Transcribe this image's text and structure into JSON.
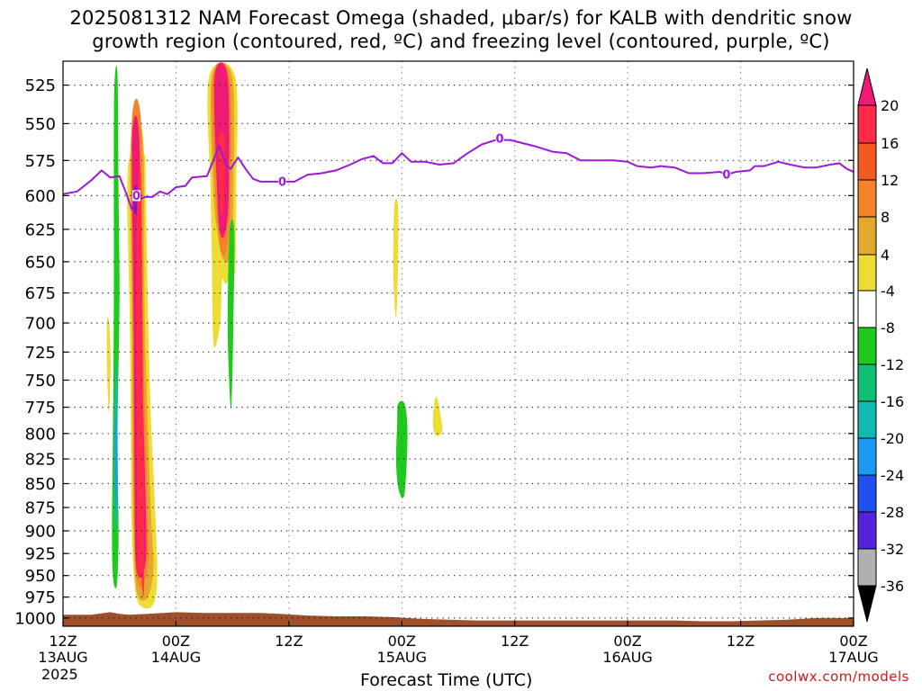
{
  "title": {
    "line1": "2025081312 NAM Forecast Omega (shaded, μbar/s) for KALB with dendritic snow",
    "line2": "growth region (contoured, red, ºC) and freezing level (contoured, purple, ºC)"
  },
  "credit": "coolwx.com/models",
  "chart_data": {
    "type": "heatmap",
    "xlabel": "Forecast Time (UTC)",
    "ylabel": "",
    "year_label": "2025",
    "x_range_hours": [
      0,
      84
    ],
    "y_range_mb": [
      1010,
      510
    ],
    "y_ticks": [
      525,
      550,
      575,
      600,
      625,
      650,
      675,
      700,
      725,
      750,
      775,
      800,
      825,
      850,
      875,
      900,
      925,
      950,
      975,
      1000
    ],
    "x_ticks": [
      {
        "h": 0,
        "line1": "12Z",
        "line2": "13AUG"
      },
      {
        "h": 12,
        "line1": "00Z",
        "line2": "14AUG"
      },
      {
        "h": 24,
        "line1": "12Z",
        "line2": ""
      },
      {
        "h": 36,
        "line1": "00Z",
        "line2": "15AUG"
      },
      {
        "h": 48,
        "line1": "12Z",
        "line2": ""
      },
      {
        "h": 60,
        "line1": "00Z",
        "line2": "16AUG"
      },
      {
        "h": 72,
        "line1": "12Z",
        "line2": ""
      },
      {
        "h": 84,
        "line1": "00Z",
        "line2": "17AUG"
      }
    ],
    "grid": true,
    "colorbar": {
      "labels": [
        "20",
        "16",
        "12",
        "8",
        "4",
        "-4",
        "-8",
        "-12",
        "-16",
        "-20",
        "-24",
        "-28",
        "-32",
        "-36"
      ],
      "colors": [
        "#ff2a4a",
        "#f25a22",
        "#f5832a",
        "#e3a92e",
        "#eddc34",
        "#ffffff",
        "#1ecb1c",
        "#10c070",
        "#12b9b0",
        "#1a9af0",
        "#2050f0",
        "#5422d8",
        "#8a10c0",
        "#b0b0b0"
      ],
      "top_color": "#ee1a73",
      "bottom_color": "#000000"
    },
    "freezing_level": {
      "color": "#9a1ad6",
      "label": "0",
      "label_points": [
        {
          "h": 7.8,
          "p": 600
        },
        {
          "h": 23.3,
          "p": 590
        },
        {
          "h": 46.4,
          "p": 560
        },
        {
          "h": 70.5,
          "p": 585
        }
      ],
      "points": [
        [
          0,
          599
        ],
        [
          1.5,
          597
        ],
        [
          3,
          589
        ],
        [
          4.1,
          582
        ],
        [
          5,
          587
        ],
        [
          6,
          586
        ],
        [
          6.8,
          600
        ],
        [
          7.3,
          610
        ],
        [
          7.8,
          604
        ],
        [
          8.7,
          601
        ],
        [
          9.5,
          601
        ],
        [
          10.3,
          597
        ],
        [
          11.1,
          599
        ],
        [
          12,
          594
        ],
        [
          13,
          593
        ],
        [
          13.7,
          587
        ],
        [
          15.3,
          586
        ],
        [
          16.1,
          573
        ],
        [
          16.6,
          565
        ],
        [
          17.3,
          578
        ],
        [
          17.8,
          581
        ],
        [
          18.6,
          573
        ],
        [
          19.4,
          581
        ],
        [
          20.2,
          588
        ],
        [
          21,
          590
        ],
        [
          23.3,
          590
        ],
        [
          24.6,
          590
        ],
        [
          26,
          585
        ],
        [
          27.5,
          584
        ],
        [
          29,
          582
        ],
        [
          30.5,
          578
        ],
        [
          31.8,
          574
        ],
        [
          33,
          572
        ],
        [
          34,
          577
        ],
        [
          35,
          577
        ],
        [
          36,
          570
        ],
        [
          37,
          576
        ],
        [
          38.5,
          576
        ],
        [
          40,
          578
        ],
        [
          41.5,
          577
        ],
        [
          43,
          570
        ],
        [
          44.5,
          564
        ],
        [
          46,
          561
        ],
        [
          47.5,
          561
        ],
        [
          50,
          565
        ],
        [
          52,
          569
        ],
        [
          53.5,
          570
        ],
        [
          55,
          575
        ],
        [
          57,
          575
        ],
        [
          58.5,
          575
        ],
        [
          60,
          576
        ],
        [
          61,
          579
        ],
        [
          62.5,
          580
        ],
        [
          63.5,
          579
        ],
        [
          65,
          580
        ],
        [
          66.5,
          584
        ],
        [
          68,
          584
        ],
        [
          69.8,
          583
        ],
        [
          70.5,
          585
        ],
        [
          71.5,
          583
        ],
        [
          73,
          582
        ],
        [
          73.5,
          579
        ],
        [
          74.5,
          579
        ],
        [
          76,
          576
        ],
        [
          77.3,
          578
        ],
        [
          78.8,
          580
        ],
        [
          80,
          580
        ],
        [
          81.5,
          578
        ],
        [
          82.5,
          577
        ],
        [
          83.3,
          581
        ],
        [
          84,
          583
        ]
      ]
    },
    "shaded_regions": [
      {
        "color": "#1ecb1c",
        "outline": [
          [
            5.5,
            520
          ],
          [
            5.8,
            520
          ],
          [
            5.9,
            600
          ],
          [
            6.0,
            680
          ],
          [
            5.8,
            800
          ],
          [
            5.9,
            900
          ],
          [
            5.8,
            950
          ],
          [
            5.6,
            965
          ],
          [
            5.3,
            950
          ],
          [
            5.2,
            900
          ],
          [
            5.3,
            800
          ],
          [
            5.4,
            680
          ],
          [
            5.4,
            560
          ]
        ]
      },
      {
        "color": "#12b9b0",
        "outline": [
          [
            5.6,
            740
          ],
          [
            5.75,
            740
          ],
          [
            5.8,
            800
          ],
          [
            5.8,
            860
          ],
          [
            5.65,
            895
          ],
          [
            5.5,
            895
          ],
          [
            5.45,
            860
          ],
          [
            5.45,
            800
          ]
        ]
      },
      {
        "color": "#1a9af0",
        "outline": [
          [
            5.55,
            790
          ],
          [
            5.7,
            790
          ],
          [
            5.72,
            840
          ],
          [
            5.6,
            880
          ],
          [
            5.5,
            840
          ]
        ]
      },
      {
        "color": "#eddc34",
        "outline": [
          [
            4.7,
            697
          ],
          [
            4.95,
            703
          ],
          [
            5.05,
            740
          ],
          [
            4.9,
            780
          ],
          [
            4.75,
            760
          ],
          [
            4.65,
            730
          ]
        ]
      },
      {
        "color": "#eddc34",
        "outline": [
          [
            6.9,
            580
          ],
          [
            8.6,
            570
          ],
          [
            8.8,
            600
          ],
          [
            9.2,
            750
          ],
          [
            9.8,
            880
          ],
          [
            10.0,
            955
          ],
          [
            9.5,
            985
          ],
          [
            8.2,
            985
          ],
          [
            7.6,
            960
          ],
          [
            7.3,
            900
          ],
          [
            7.2,
            800
          ],
          [
            7.1,
            700
          ]
        ]
      },
      {
        "color": "#e3a92e",
        "outline": [
          [
            7.2,
            560
          ],
          [
            8.5,
            560
          ],
          [
            8.7,
            700
          ],
          [
            9.3,
            870
          ],
          [
            9.6,
            940
          ],
          [
            9.0,
            975
          ],
          [
            8.0,
            975
          ],
          [
            7.6,
            940
          ],
          [
            7.4,
            850
          ],
          [
            7.3,
            700
          ]
        ]
      },
      {
        "color": "#f5832a",
        "outline": [
          [
            7.3,
            550
          ],
          [
            8.3,
            550
          ],
          [
            8.5,
            700
          ],
          [
            9.0,
            880
          ],
          [
            9.1,
            930
          ],
          [
            8.6,
            960
          ],
          [
            8.0,
            960
          ],
          [
            7.65,
            930
          ],
          [
            7.5,
            850
          ],
          [
            7.4,
            700
          ]
        ]
      },
      {
        "color": "#ee1a73",
        "outline": [
          [
            7.35,
            560
          ],
          [
            8.1,
            560
          ],
          [
            8.3,
            700
          ],
          [
            8.8,
            880
          ],
          [
            8.8,
            930
          ],
          [
            8.4,
            950
          ],
          [
            8.0,
            950
          ],
          [
            7.7,
            930
          ],
          [
            7.6,
            850
          ],
          [
            7.5,
            700
          ]
        ]
      },
      {
        "color": "#8a10c0",
        "outline": [
          [
            7.5,
            595
          ],
          [
            8.1,
            595
          ],
          [
            8.15,
            612
          ],
          [
            7.55,
            612
          ]
        ]
      },
      {
        "color": "#ff2a4a",
        "outline": [
          [
            7.9,
            600
          ],
          [
            8.3,
            600
          ],
          [
            8.6,
            940
          ],
          [
            8.3,
            950
          ],
          [
            8.0,
            945
          ],
          [
            7.9,
            930
          ],
          [
            7.8,
            700
          ]
        ]
      },
      {
        "color": "#eddc34",
        "outline": [
          [
            15.5,
            520
          ],
          [
            18.3,
            520
          ],
          [
            18.4,
            600
          ],
          [
            18.3,
            655
          ],
          [
            18.0,
            660
          ],
          [
            17.3,
            668
          ],
          [
            16.9,
            665
          ],
          [
            16.7,
            700
          ],
          [
            16.0,
            718
          ],
          [
            15.8,
            640
          ],
          [
            15.7,
            600
          ]
        ]
      },
      {
        "color": "#e3a92e",
        "outline": [
          [
            15.8,
            520
          ],
          [
            18.0,
            520
          ],
          [
            18.1,
            600
          ],
          [
            17.8,
            645
          ],
          [
            17.0,
            648
          ],
          [
            16.5,
            630
          ],
          [
            16.0,
            600
          ]
        ]
      },
      {
        "color": "#f5832a",
        "outline": [
          [
            15.9,
            520
          ],
          [
            17.7,
            520
          ],
          [
            17.8,
            600
          ],
          [
            17.4,
            640
          ],
          [
            16.7,
            640
          ],
          [
            16.2,
            600
          ]
        ]
      },
      {
        "color": "#ee1a73",
        "outline": [
          [
            16.1,
            520
          ],
          [
            17.5,
            520
          ],
          [
            17.6,
            600
          ],
          [
            17.2,
            628
          ],
          [
            16.7,
            628
          ],
          [
            16.4,
            600
          ]
        ]
      },
      {
        "color": "#ff2a4a",
        "outline": [
          [
            16.5,
            560
          ],
          [
            17.2,
            560
          ],
          [
            17.1,
            600
          ],
          [
            16.9,
            615
          ],
          [
            16.6,
            600
          ]
        ]
      },
      {
        "color": "#1ecb1c",
        "outline": [
          [
            17.7,
            626
          ],
          [
            18.2,
            626
          ],
          [
            18.1,
            700
          ],
          [
            17.9,
            772
          ],
          [
            17.7,
            760
          ],
          [
            17.5,
            700
          ]
        ]
      },
      {
        "color": "#eddc34",
        "outline": [
          [
            35.2,
            608
          ],
          [
            35.6,
            608
          ],
          [
            35.6,
            650
          ],
          [
            35.4,
            695
          ],
          [
            35.1,
            660
          ]
        ]
      },
      {
        "color": "#1ecb1c",
        "outline": [
          [
            35.6,
            772
          ],
          [
            36.3,
            772
          ],
          [
            36.6,
            800
          ],
          [
            36.3,
            860
          ],
          [
            35.7,
            858
          ],
          [
            35.4,
            830
          ],
          [
            35.5,
            790
          ]
        ]
      },
      {
        "color": "#eddc34",
        "outline": [
          [
            39.5,
            768
          ],
          [
            39.8,
            768
          ],
          [
            40.1,
            782
          ],
          [
            40.3,
            798
          ],
          [
            39.6,
            802
          ],
          [
            39.3,
            790
          ]
        ]
      }
    ],
    "terrain": {
      "color": "#a04f2b",
      "points": [
        [
          0,
          996
        ],
        [
          3,
          996
        ],
        [
          5,
          993
        ],
        [
          6,
          995
        ],
        [
          7,
          996
        ],
        [
          9,
          995
        ],
        [
          12,
          993
        ],
        [
          15,
          994
        ],
        [
          18,
          994
        ],
        [
          21,
          994
        ],
        [
          23,
          995
        ],
        [
          26,
          997
        ],
        [
          29,
          998
        ],
        [
          32,
          998
        ],
        [
          35,
          999
        ],
        [
          38,
          1001
        ],
        [
          41,
          1002
        ],
        [
          44,
          1003
        ],
        [
          47,
          1003
        ],
        [
          50,
          1003
        ],
        [
          53,
          1003
        ],
        [
          56,
          1003
        ],
        [
          59,
          1003
        ],
        [
          62,
          1003
        ],
        [
          65,
          1003
        ],
        [
          68,
          1004
        ],
        [
          71,
          1004
        ],
        [
          74,
          1003
        ],
        [
          77,
          1002
        ],
        [
          80,
          1000
        ],
        [
          84,
          1000
        ]
      ]
    }
  }
}
